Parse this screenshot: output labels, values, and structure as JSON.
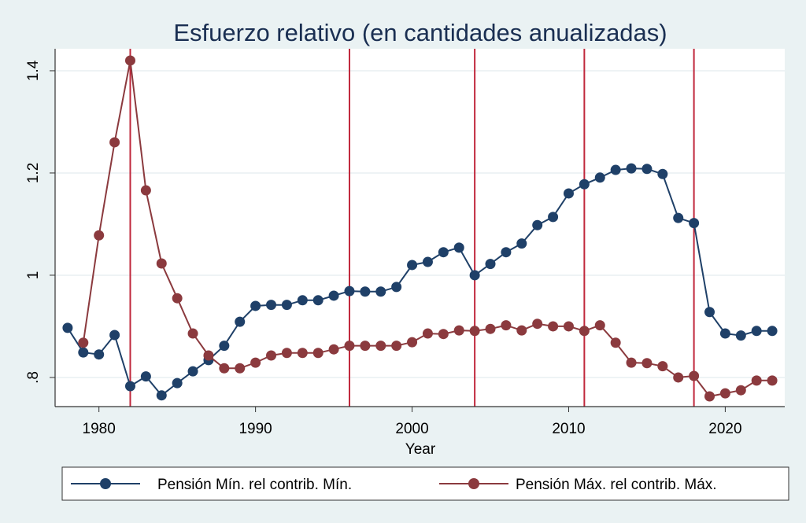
{
  "chart_data": {
    "type": "line",
    "title": "Esfuerzo relativo (en cantidades anualizadas)",
    "xlabel": "Year",
    "ylabel": "",
    "xlim": [
      1977.2,
      2023.8
    ],
    "ylim": [
      0.743,
      1.443
    ],
    "x_ticks": [
      1980,
      1990,
      2000,
      2010,
      2020
    ],
    "x_tick_labels": [
      "1980",
      "1990",
      "2000",
      "2010",
      "2020"
    ],
    "y_ticks": [
      0.8,
      1.0,
      1.2,
      1.4
    ],
    "y_tick_labels": [
      ".8",
      "1",
      "1.2",
      "1.4"
    ],
    "grid": true,
    "vertical_lines": [
      1982,
      1996,
      2004,
      2011,
      2018
    ],
    "legend_position": "bottom",
    "colors": {
      "background": "#eaf2f3",
      "plot_bg": "#ffffff",
      "grid": "#e8eff2",
      "vline": "#c0283c",
      "title": "#1a2f52"
    },
    "series": [
      {
        "name": "Pensión Mín. rel contrib. Mín.",
        "color": "#1f4068",
        "x": [
          1978,
          1979,
          1980,
          1981,
          1982,
          1983,
          1984,
          1985,
          1986,
          1987,
          1988,
          1989,
          1990,
          1991,
          1992,
          1993,
          1994,
          1995,
          1996,
          1997,
          1998,
          1999,
          2000,
          2001,
          2002,
          2003,
          2004,
          2005,
          2006,
          2007,
          2008,
          2009,
          2010,
          2011,
          2012,
          2013,
          2014,
          2015,
          2016,
          2017,
          2018,
          2019,
          2020,
          2021,
          2022,
          2023
        ],
        "values": [
          0.897,
          0.849,
          0.845,
          0.883,
          0.783,
          0.802,
          0.765,
          0.789,
          0.812,
          0.834,
          0.862,
          0.909,
          0.94,
          0.942,
          0.942,
          0.951,
          0.951,
          0.96,
          0.969,
          0.968,
          0.968,
          0.977,
          1.02,
          1.026,
          1.045,
          1.054,
          1.0,
          1.022,
          1.045,
          1.062,
          1.098,
          1.114,
          1.16,
          1.178,
          1.191,
          1.206,
          1.209,
          1.208,
          1.198,
          1.112,
          1.102,
          0.928,
          0.886,
          0.882,
          0.891,
          0.891
        ]
      },
      {
        "name": "Pensión Máx. rel contrib. Máx.",
        "color": "#8b3a3e",
        "x": [
          1979,
          1980,
          1981,
          1982,
          1983,
          1984,
          1985,
          1986,
          1987,
          1988,
          1989,
          1990,
          1991,
          1992,
          1993,
          1994,
          1995,
          1996,
          1997,
          1998,
          1999,
          2000,
          2001,
          2002,
          2003,
          2004,
          2005,
          2006,
          2007,
          2008,
          2009,
          2010,
          2011,
          2012,
          2013,
          2014,
          2015,
          2016,
          2017,
          2018,
          2019,
          2020,
          2021,
          2022,
          2023
        ],
        "values": [
          0.868,
          1.078,
          1.26,
          1.42,
          1.166,
          1.023,
          0.955,
          0.886,
          0.843,
          0.818,
          0.818,
          0.829,
          0.843,
          0.848,
          0.848,
          0.848,
          0.855,
          0.862,
          0.862,
          0.862,
          0.862,
          0.869,
          0.886,
          0.885,
          0.892,
          0.891,
          0.895,
          0.902,
          0.892,
          0.905,
          0.9,
          0.9,
          0.891,
          0.902,
          0.868,
          0.829,
          0.828,
          0.822,
          0.8,
          0.803,
          0.763,
          0.769,
          0.775,
          0.794,
          0.794
        ]
      }
    ]
  }
}
